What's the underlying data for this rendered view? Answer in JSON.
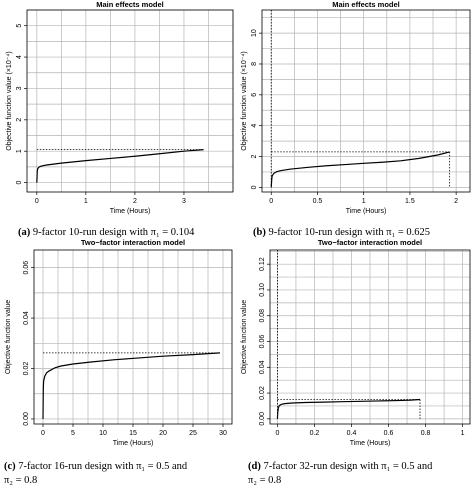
{
  "chart_data": [
    {
      "id": "a",
      "type": "line",
      "title": "Main effects model",
      "xlabel": "Time (Hours)",
      "ylabel": "Objective function value (×10⁻⁴)",
      "xlim": [
        -0.2,
        4.0
      ],
      "ylim": [
        -0.3,
        5.5
      ],
      "xticks": [
        0,
        1,
        2,
        3
      ],
      "yticks": [
        0,
        1,
        2,
        3,
        4,
        5
      ],
      "series": [
        {
          "x": [
            0,
            0.01,
            0.02,
            0.05,
            0.1,
            0.2,
            0.5,
            1.0,
            1.5,
            2.0,
            2.5,
            3.0,
            3.4
          ],
          "y": [
            0.0,
            0.38,
            0.45,
            0.5,
            0.53,
            0.56,
            0.62,
            0.7,
            0.77,
            0.84,
            0.92,
            1.0,
            1.05
          ]
        }
      ],
      "reference": {
        "x": 3.4,
        "y": 1.05
      }
    },
    {
      "id": "b",
      "type": "line",
      "title": "Main effects model",
      "xlabel": "Time (Hours)",
      "ylabel": "Objective function value (×10⁻⁴)",
      "xlim": [
        -0.1,
        2.15
      ],
      "ylim": [
        -0.3,
        11.5
      ],
      "xticks": [
        0.0,
        0.5,
        1.0,
        1.5,
        2.0
      ],
      "yticks": [
        0,
        2,
        4,
        6,
        8,
        10
      ],
      "series": [
        {
          "x": [
            0,
            0.005,
            0.01,
            0.03,
            0.06,
            0.1,
            0.2,
            0.4,
            0.6,
            0.8,
            1.0,
            1.2,
            1.4,
            1.6,
            1.8,
            1.93
          ],
          "y": [
            0.0,
            0.5,
            0.75,
            0.92,
            1.02,
            1.08,
            1.18,
            1.3,
            1.4,
            1.48,
            1.56,
            1.63,
            1.72,
            1.88,
            2.1,
            2.3
          ]
        }
      ],
      "reference": {
        "x": 1.93,
        "y": 2.3
      }
    },
    {
      "id": "c",
      "type": "line",
      "title": "Two−factor interaction model",
      "xlabel": "Time (Hours)",
      "ylabel": "Objective function value",
      "xlim": [
        -1.5,
        31.5
      ],
      "ylim": [
        -0.002,
        0.067
      ],
      "xticks": [
        0,
        5,
        10,
        15,
        20,
        25,
        30
      ],
      "yticks": [
        0.0,
        0.02,
        0.04,
        0.06
      ],
      "ytick_labels": [
        "0.00",
        "0.02",
        "0.04",
        "0.06"
      ],
      "series": [
        {
          "x": [
            0,
            0.05,
            0.1,
            0.3,
            0.6,
            1,
            2,
            3,
            5,
            8,
            12,
            16,
            20,
            25,
            29.5
          ],
          "y": [
            0.0,
            0.012,
            0.015,
            0.017,
            0.0183,
            0.019,
            0.0203,
            0.021,
            0.0218,
            0.0226,
            0.0235,
            0.0242,
            0.0249,
            0.0255,
            0.0262
          ]
        }
      ],
      "reference": {
        "x": 29.5,
        "y": 0.0262
      }
    },
    {
      "id": "d",
      "type": "line",
      "title": "Two−factor interaction model",
      "xlabel": "Time (Hours)",
      "ylabel": "Objective function value",
      "xlim": [
        -0.04,
        1.04
      ],
      "ylim": [
        -0.004,
        0.131
      ],
      "xticks": [
        0.0,
        0.2,
        0.4,
        0.6,
        0.8,
        1.0
      ],
      "yticks": [
        0.0,
        0.02,
        0.04,
        0.06,
        0.08,
        0.1,
        0.12
      ],
      "ytick_labels": [
        "0.00",
        "0.02",
        "0.04",
        "0.06",
        "0.08",
        "0.10",
        "0.12"
      ],
      "series": [
        {
          "x": [
            0.0,
            0.002,
            0.005,
            0.01,
            0.02,
            0.04,
            0.08,
            0.15,
            0.25,
            0.35,
            0.45,
            0.55,
            0.65,
            0.72,
            0.77
          ],
          "y": [
            0.0,
            0.005,
            0.0085,
            0.0102,
            0.0112,
            0.0118,
            0.0123,
            0.0127,
            0.013,
            0.0133,
            0.0136,
            0.0139,
            0.0142,
            0.0145,
            0.015
          ]
        }
      ],
      "reference": {
        "x": 0.77,
        "y": 0.015
      }
    }
  ],
  "captions": {
    "a": {
      "label": "(a)",
      "text": " 9-factor 10-run design with  π₁ = 0.104"
    },
    "b": {
      "label": "(b)",
      "text": " 9-factor 10-run design with  π₁ = 0.625"
    },
    "c": {
      "label": "(c)",
      "text": " 7-factor 16-run design with  π₁ = 0.5 and",
      "line2": "π₂ = 0.8"
    },
    "d": {
      "label": "(d)",
      "text": " 7-factor 32-run design with  π₁ = 0.5 and",
      "line2": "π₂ = 0.8"
    }
  }
}
